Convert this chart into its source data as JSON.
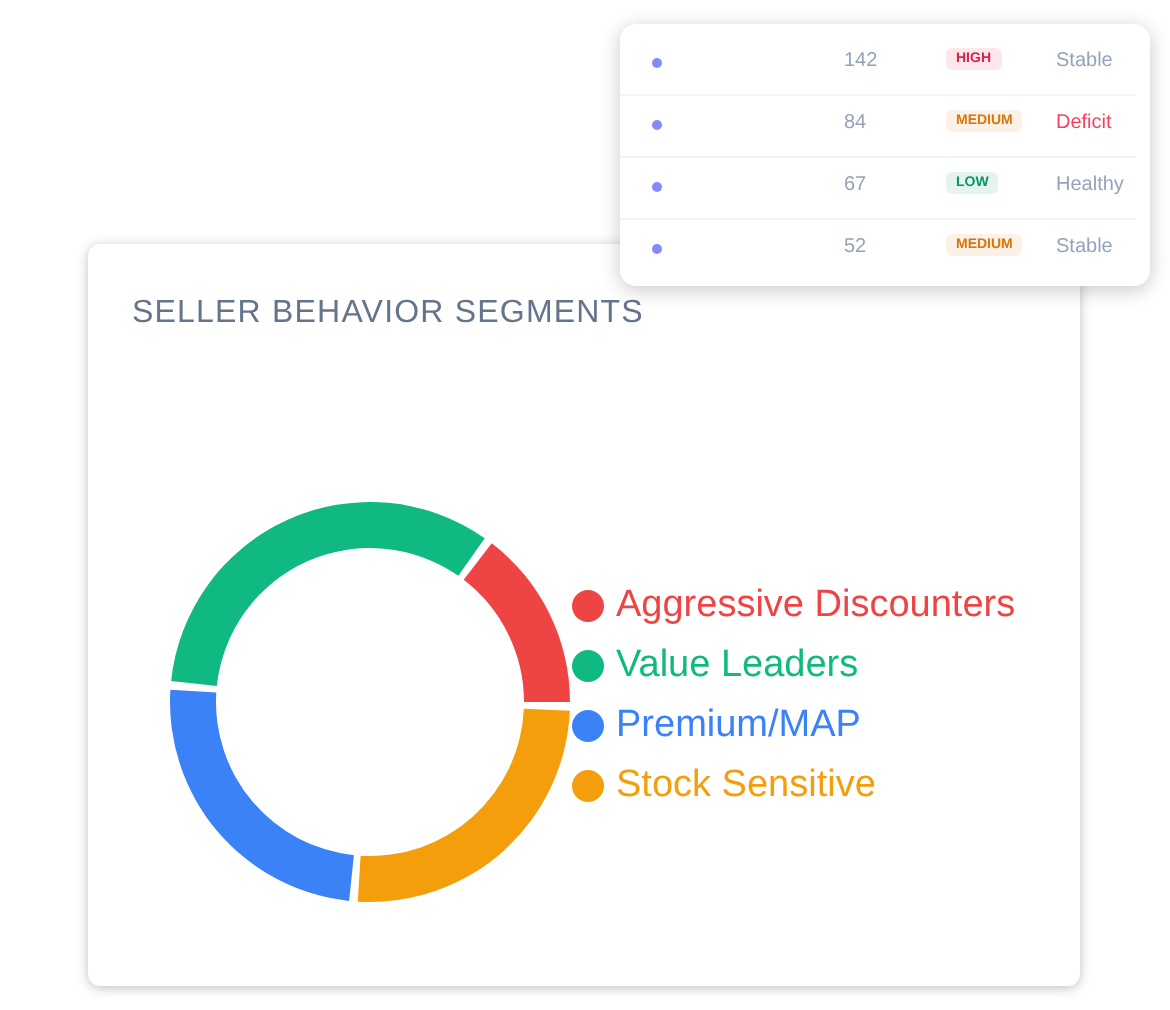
{
  "chart_data": [
    {
      "type": "donut",
      "title": "SELLER BEHAVIOR SEGMENTS",
      "categories": [
        "Aggressive Discounters",
        "Value Leaders",
        "Premium/MAP",
        "Stock Sensitive"
      ],
      "values": [
        15,
        34,
        25,
        26
      ],
      "colors": [
        "#ef4444",
        "#10b981",
        "#3b82f6",
        "#f59e0b"
      ],
      "legend": "right"
    },
    {
      "type": "other",
      "annotations": [
        "142",
        "HIGH",
        "Stable",
        "84",
        "MEDIUM",
        "Deficit",
        "67",
        "LOW",
        "Healthy",
        "52",
        "MEDIUM",
        "Stable"
      ],
      "colors": [
        "#94a3b8",
        "#e11d48",
        "#94a3b8",
        "#94a3b8",
        "#d97706",
        "#f43f5e",
        "#94a3b8",
        "#059669",
        "#94a3b8",
        "#94a3b8",
        "#d97706",
        "#94a3b8"
      ]
    }
  ]
}
